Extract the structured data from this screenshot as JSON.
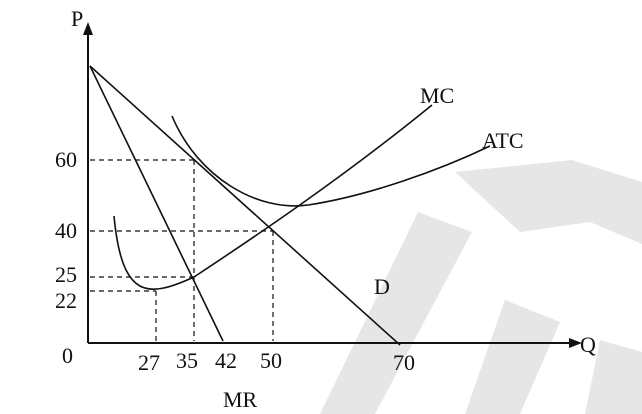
{
  "axes": {
    "y_label": "P",
    "x_label": "Q",
    "origin_label": "0"
  },
  "y_ticks": [
    "60",
    "40",
    "25",
    "22"
  ],
  "x_ticks": [
    "27",
    "35",
    "42",
    "50",
    "70"
  ],
  "curves": {
    "mc": "MC",
    "atc": "ATC",
    "demand": "D",
    "mr": "MR"
  },
  "colors": {
    "ink": "#111111",
    "watermark": "#e6e6e6"
  }
}
